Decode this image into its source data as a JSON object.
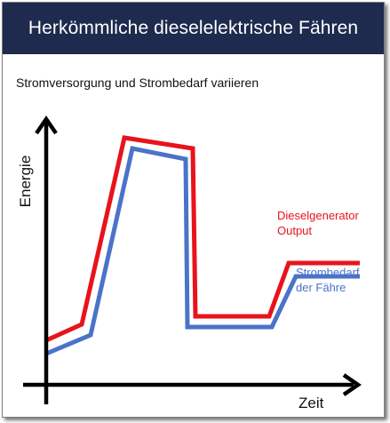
{
  "title": "Herkömmliche dieselelektrische Fähren",
  "subtitle": "Stromversorgung und Strombedarf variieren",
  "chart_data": {
    "type": "line",
    "xlabel": "Zeit",
    "ylabel": "Energie",
    "grid": false,
    "legend_placement": "right, inline labels",
    "x": [
      0,
      1,
      2,
      3,
      4,
      5,
      6,
      7
    ],
    "series": [
      {
        "name": "Dieselgenerator Output",
        "label_lines": [
          "Dieselgenerator",
          "Output"
        ],
        "color": "#e8131b",
        "values": [
          7,
          13,
          83,
          79,
          16,
          16,
          36,
          36
        ]
      },
      {
        "name": "Strombedarf der Fähre",
        "label_lines": [
          "Strombedarf",
          "der Fähre"
        ],
        "color": "#4a73c9",
        "values": [
          2,
          9,
          79,
          75,
          12,
          12,
          31,
          31
        ]
      }
    ]
  }
}
